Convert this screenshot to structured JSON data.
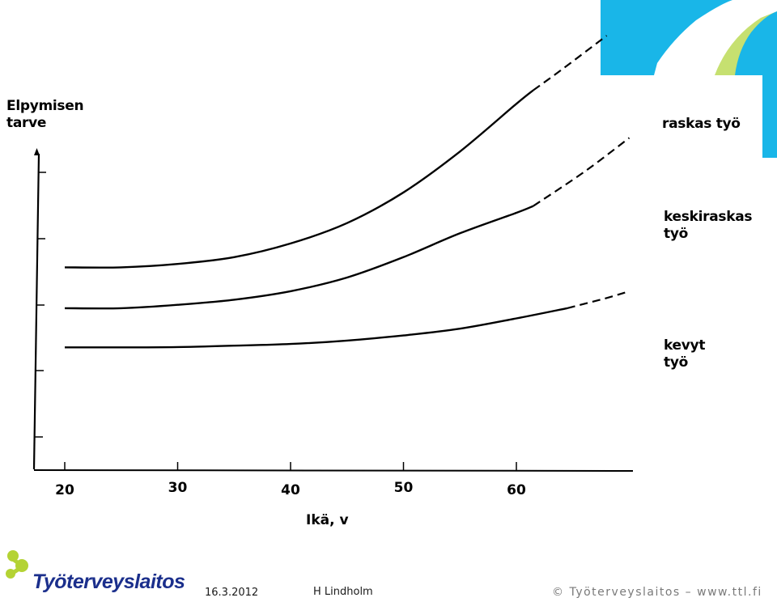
{
  "colors": {
    "accent_cyan": "#19b6e8",
    "accent_lime": "#c6e070",
    "logo_green": "#b4d334",
    "logo_navy": "#1b2f8c"
  },
  "chart_data": {
    "type": "line",
    "ylabel": "Elpymisen tarve",
    "xlabel": "Ikä, v",
    "x_ticks": [
      "20",
      "30",
      "40",
      "50",
      "60"
    ],
    "xlim": [
      17,
      74
    ],
    "ylim": [
      0,
      10
    ],
    "grid": false,
    "y_tick_labels": false,
    "series": [
      {
        "name": "raskas työ",
        "solid": [
          [
            20,
            4.1
          ],
          [
            25,
            4.1
          ],
          [
            30,
            4.2
          ],
          [
            35,
            4.4
          ],
          [
            40,
            4.8
          ],
          [
            45,
            5.4
          ],
          [
            50,
            6.3
          ],
          [
            55,
            7.5
          ],
          [
            60,
            8.9
          ],
          [
            61.5,
            9.3
          ]
        ],
        "dashed": [
          [
            61.5,
            9.3
          ],
          [
            64,
            9.9
          ],
          [
            68,
            10.9
          ]
        ]
      },
      {
        "name": "keskiraskas työ",
        "solid": [
          [
            20,
            2.9
          ],
          [
            25,
            2.9
          ],
          [
            30,
            3.0
          ],
          [
            35,
            3.15
          ],
          [
            40,
            3.4
          ],
          [
            45,
            3.8
          ],
          [
            50,
            4.4
          ],
          [
            55,
            5.1
          ],
          [
            60,
            5.7
          ],
          [
            61.5,
            5.9
          ]
        ],
        "dashed": [
          [
            61.5,
            5.9
          ],
          [
            66,
            6.9
          ],
          [
            70,
            7.9
          ]
        ]
      },
      {
        "name": "kevyt työ",
        "solid": [
          [
            20,
            1.75
          ],
          [
            25,
            1.75
          ],
          [
            30,
            1.76
          ],
          [
            35,
            1.8
          ],
          [
            40,
            1.85
          ],
          [
            45,
            1.95
          ],
          [
            50,
            2.1
          ],
          [
            55,
            2.3
          ],
          [
            60,
            2.6
          ],
          [
            64.5,
            2.9
          ]
        ],
        "dashed": [
          [
            64.5,
            2.9
          ],
          [
            68,
            3.2
          ],
          [
            70,
            3.4
          ]
        ]
      }
    ]
  },
  "series_labels": {
    "raskas": "raskas työ",
    "keskiraskas_1": "keskiraskas",
    "keskiraskas_2": "työ",
    "kevyt_1": "kevyt",
    "kevyt_2": "työ"
  },
  "ylabel_lines": [
    "Elpymisen",
    "tarve"
  ],
  "footer": {
    "org": "Työterveyslaitos",
    "date": "16.3.2012",
    "author": "H Lindholm",
    "copyright": "© Työterveyslaitos – www.ttl.fi"
  }
}
